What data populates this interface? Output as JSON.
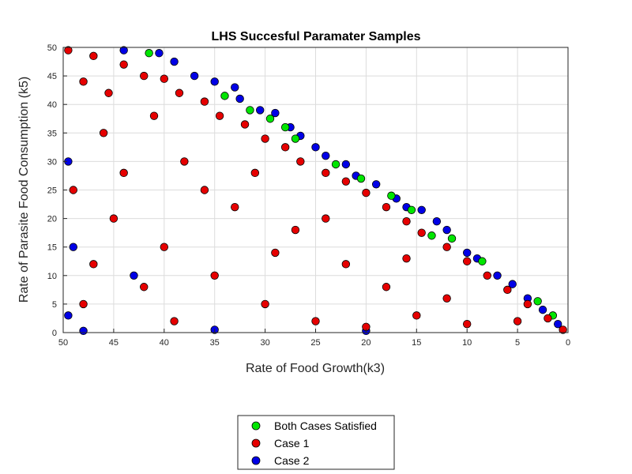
{
  "chart_data": {
    "type": "scatter",
    "title": "LHS Succesful Paramater Samples",
    "xlabel": "Rate of Food Growth(k3)",
    "ylabel": "Rate of Parasite Food Consumption (k5)",
    "xlim": [
      0,
      50
    ],
    "ylim": [
      0,
      50
    ],
    "x_reversed": true,
    "grid": true,
    "legend_position": "bottom-outside",
    "x_ticks": [
      50,
      45,
      40,
      35,
      30,
      25,
      20,
      15,
      10,
      5,
      0
    ],
    "y_ticks": [
      0,
      5,
      10,
      15,
      20,
      25,
      30,
      35,
      40,
      45,
      50
    ],
    "series": [
      {
        "name": "Both Cases Satisfied",
        "color": "#00e600",
        "points": [
          [
            41.5,
            49.0
          ],
          [
            34.0,
            41.5
          ],
          [
            31.5,
            39.0
          ],
          [
            29.5,
            37.5
          ],
          [
            28.0,
            36.0
          ],
          [
            27.0,
            34.0
          ],
          [
            23.0,
            29.5
          ],
          [
            20.5,
            27.0
          ],
          [
            17.5,
            24.0
          ],
          [
            15.5,
            21.5
          ],
          [
            13.5,
            17.0
          ],
          [
            11.5,
            16.5
          ],
          [
            8.5,
            12.5
          ],
          [
            3.0,
            5.5
          ],
          [
            1.5,
            3.0
          ]
        ]
      },
      {
        "name": "Case 1",
        "color": "#e60000",
        "points": [
          [
            49.5,
            49.5
          ],
          [
            47.0,
            48.5
          ],
          [
            44.0,
            47.0
          ],
          [
            48.0,
            44.0
          ],
          [
            45.5,
            42.0
          ],
          [
            42.0,
            45.0
          ],
          [
            40.0,
            44.5
          ],
          [
            38.5,
            42.0
          ],
          [
            36.0,
            40.5
          ],
          [
            34.5,
            38.0
          ],
          [
            32.0,
            36.5
          ],
          [
            30.0,
            34.0
          ],
          [
            28.0,
            32.5
          ],
          [
            26.5,
            30.0
          ],
          [
            24.0,
            28.0
          ],
          [
            22.0,
            26.5
          ],
          [
            20.0,
            24.5
          ],
          [
            18.0,
            22.0
          ],
          [
            16.0,
            19.5
          ],
          [
            14.5,
            17.5
          ],
          [
            12.0,
            15.0
          ],
          [
            10.0,
            12.5
          ],
          [
            8.0,
            10.0
          ],
          [
            6.0,
            7.5
          ],
          [
            4.0,
            5.0
          ],
          [
            2.0,
            2.5
          ],
          [
            0.5,
            0.5
          ],
          [
            49.0,
            25.0
          ],
          [
            45.0,
            20.0
          ],
          [
            40.0,
            15.0
          ],
          [
            35.0,
            10.0
          ],
          [
            30.0,
            5.0
          ],
          [
            25.0,
            2.0
          ],
          [
            20.0,
            1.0
          ],
          [
            15.0,
            3.0
          ],
          [
            10.0,
            1.5
          ],
          [
            48.0,
            5.0
          ],
          [
            46.0,
            35.0
          ],
          [
            38.0,
            30.0
          ],
          [
            33.0,
            22.0
          ],
          [
            27.0,
            18.0
          ],
          [
            22.0,
            12.0
          ],
          [
            18.0,
            8.0
          ],
          [
            12.0,
            6.0
          ],
          [
            42.0,
            8.0
          ],
          [
            36.0,
            25.0
          ],
          [
            29.0,
            14.0
          ],
          [
            44.0,
            28.0
          ],
          [
            41.0,
            38.0
          ],
          [
            31.0,
            28.0
          ],
          [
            24.0,
            20.0
          ],
          [
            16.0,
            13.0
          ],
          [
            47.0,
            12.0
          ],
          [
            39.0,
            2.0
          ],
          [
            5.0,
            2.0
          ]
        ]
      },
      {
        "name": "Case 2",
        "color": "#0000e6",
        "points": [
          [
            44.0,
            49.5
          ],
          [
            40.5,
            49.0
          ],
          [
            39.0,
            47.5
          ],
          [
            37.0,
            45.0
          ],
          [
            35.0,
            44.0
          ],
          [
            33.0,
            43.0
          ],
          [
            32.5,
            41.0
          ],
          [
            30.5,
            39.0
          ],
          [
            29.0,
            38.5
          ],
          [
            27.5,
            36.0
          ],
          [
            26.5,
            34.5
          ],
          [
            25.0,
            32.5
          ],
          [
            24.0,
            31.0
          ],
          [
            22.0,
            29.5
          ],
          [
            21.0,
            27.5
          ],
          [
            19.0,
            26.0
          ],
          [
            17.0,
            23.5
          ],
          [
            16.0,
            22.0
          ],
          [
            14.5,
            21.5
          ],
          [
            13.0,
            19.5
          ],
          [
            12.0,
            18.0
          ],
          [
            10.0,
            14.0
          ],
          [
            9.0,
            13.0
          ],
          [
            7.0,
            10.0
          ],
          [
            5.5,
            8.5
          ],
          [
            4.0,
            6.0
          ],
          [
            2.5,
            4.0
          ],
          [
            1.0,
            1.5
          ],
          [
            49.5,
            30.0
          ],
          [
            49.0,
            15.0
          ],
          [
            49.5,
            3.0
          ],
          [
            48.0,
            0.3
          ],
          [
            35.0,
            0.5
          ],
          [
            20.0,
            0.3
          ],
          [
            43.0,
            10.0
          ]
        ]
      }
    ]
  }
}
